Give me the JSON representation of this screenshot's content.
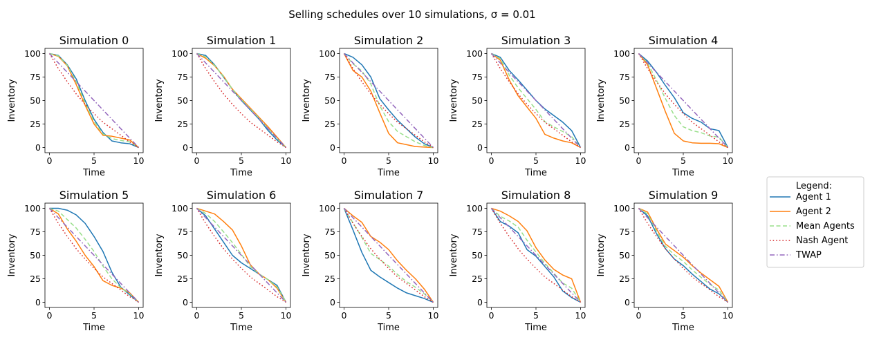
{
  "figure": {
    "suptitle": "Selling schedules over 10 simulations, σ = 0.01"
  },
  "legend": {
    "title": "Legend:",
    "placement": "right"
  },
  "chart_data": {
    "type": "line",
    "layout": "2x5 small multiples",
    "xlabel": "Time",
    "ylabel": "Inventory",
    "xlim": [
      0,
      10
    ],
    "ylim": [
      0,
      100
    ],
    "xticks": [
      0,
      5,
      10
    ],
    "yticks": [
      0,
      25,
      50,
      75,
      100
    ],
    "grid": false,
    "x": [
      0,
      1,
      2,
      3,
      4,
      5,
      6,
      7,
      8,
      9,
      10
    ],
    "styles": [
      {
        "name": "Agent 1",
        "color": "#1f77b4",
        "dash": "solid"
      },
      {
        "name": "Agent 2",
        "color": "#ff7f0e",
        "dash": "solid"
      },
      {
        "name": "Mean Agents",
        "color": "#98df8a",
        "dash": "dashed"
      },
      {
        "name": "Nash Agent",
        "color": "#d62728",
        "dash": "dotted"
      },
      {
        "name": "TWAP",
        "color": "#9467bd",
        "dash": "dashdot"
      }
    ],
    "panels": [
      {
        "title": "Simulation 0",
        "series": [
          {
            "name": "Agent 1",
            "values": [
              100,
              98,
              88,
              73,
              50,
              30,
              16,
              7,
              5,
              4,
              0
            ]
          },
          {
            "name": "Agent 2",
            "values": [
              100,
              97,
              87,
              67,
              45,
              25,
              13,
              12,
              10,
              8,
              0
            ]
          },
          {
            "name": "Mean Agents",
            "values": [
              100,
              97.5,
              87.5,
              70,
              47.5,
              27.5,
              14.5,
              9.5,
              7.5,
              6,
              0
            ]
          },
          {
            "name": "Nash Agent",
            "values": [
              100,
              84,
              70,
              57,
              46,
              36,
              27,
              20,
              13,
              6,
              0
            ]
          },
          {
            "name": "TWAP",
            "values": [
              100,
              90,
              80,
              70,
              60,
              50,
              40,
              30,
              20,
              10,
              0
            ]
          }
        ]
      },
      {
        "title": "Simulation 1",
        "series": [
          {
            "name": "Agent 1",
            "values": [
              100,
              98,
              88,
              75,
              62,
              50,
              40,
              30,
              18,
              8,
              0
            ]
          },
          {
            "name": "Agent 2",
            "values": [
              100,
              95,
              87,
              76,
              62,
              52,
              42,
              32,
              22,
              11,
              0
            ]
          },
          {
            "name": "Mean Agents",
            "values": [
              100,
              96.5,
              87.5,
              75.5,
              62,
              51,
              41,
              31,
              20,
              9.5,
              0
            ]
          },
          {
            "name": "Nash Agent",
            "values": [
              100,
              84,
              70,
              57,
              46,
              36,
              27,
              20,
              13,
              6,
              0
            ]
          },
          {
            "name": "TWAP",
            "values": [
              100,
              90,
              80,
              70,
              60,
              50,
              40,
              30,
              20,
              10,
              0
            ]
          }
        ]
      },
      {
        "title": "Simulation 2",
        "series": [
          {
            "name": "Agent 1",
            "values": [
              100,
              96,
              88,
              75,
              52,
              40,
              29,
              20,
              11,
              4,
              0
            ]
          },
          {
            "name": "Agent 2",
            "values": [
              100,
              82,
              75,
              60,
              37,
              15,
              5,
              3,
              1,
              0.5,
              0
            ]
          },
          {
            "name": "Mean Agents",
            "values": [
              100,
              89,
              81.5,
              67.5,
              44.5,
              27.5,
              17,
              11.5,
              6,
              2.2,
              0
            ]
          },
          {
            "name": "Nash Agent",
            "values": [
              100,
              84,
              70,
              57,
              46,
              36,
              27,
              20,
              13,
              6,
              0
            ]
          },
          {
            "name": "TWAP",
            "values": [
              100,
              90,
              80,
              70,
              60,
              50,
              40,
              30,
              20,
              10,
              0
            ]
          }
        ]
      },
      {
        "title": "Simulation 3",
        "series": [
          {
            "name": "Agent 1",
            "values": [
              100,
              96,
              82,
              72,
              61,
              50,
              41,
              34,
              27,
              18,
              0
            ]
          },
          {
            "name": "Agent 2",
            "values": [
              100,
              93,
              72,
              55,
              43,
              31,
              14,
              10,
              7,
              5,
              0
            ]
          },
          {
            "name": "Mean Agents",
            "values": [
              100,
              94.5,
              77,
              63.5,
              52,
              40.5,
              27.5,
              22,
              17,
              11.5,
              0
            ]
          },
          {
            "name": "Nash Agent",
            "values": [
              100,
              84,
              70,
              57,
              46,
              36,
              27,
              20,
              13,
              6,
              0
            ]
          },
          {
            "name": "TWAP",
            "values": [
              100,
              90,
              80,
              70,
              60,
              50,
              40,
              30,
              20,
              10,
              0
            ]
          }
        ]
      },
      {
        "title": "Simulation 4",
        "series": [
          {
            "name": "Agent 1",
            "values": [
              100,
              92,
              80,
              66,
              53,
              37,
              31,
              27,
              20,
              18,
              0
            ]
          },
          {
            "name": "Agent 2",
            "values": [
              100,
              88,
              63,
              38,
              15,
              7,
              5,
              4.5,
              4.5,
              4,
              0
            ]
          },
          {
            "name": "Mean Agents",
            "values": [
              100,
              90,
              71.5,
              52,
              34,
              22,
              18,
              15.75,
              12.25,
              11,
              0
            ]
          },
          {
            "name": "Nash Agent",
            "values": [
              100,
              84,
              70,
              57,
              46,
              36,
              27,
              20,
              13,
              6,
              0
            ]
          },
          {
            "name": "TWAP",
            "values": [
              100,
              90,
              80,
              70,
              60,
              50,
              40,
              30,
              20,
              10,
              0
            ]
          }
        ]
      },
      {
        "title": "Simulation 5",
        "series": [
          {
            "name": "Agent 1",
            "values": [
              100,
              100,
              98,
              93,
              84,
              70,
              54,
              32,
              16,
              8,
              0
            ]
          },
          {
            "name": "Agent 2",
            "values": [
              100,
              94,
              78,
              65,
              50,
              38,
              23,
              18,
              15,
              10,
              0
            ]
          },
          {
            "name": "Mean Agents",
            "values": [
              100,
              97,
              88,
              79,
              67,
              54,
              38.5,
              25,
              15.5,
              9,
              0
            ]
          },
          {
            "name": "Nash Agent",
            "values": [
              100,
              84,
              70,
              57,
              46,
              36,
              27,
              20,
              13,
              6,
              0
            ]
          },
          {
            "name": "TWAP",
            "values": [
              100,
              90,
              80,
              70,
              60,
              50,
              40,
              30,
              20,
              10,
              0
            ]
          }
        ]
      },
      {
        "title": "Simulation 6",
        "series": [
          {
            "name": "Agent 1",
            "values": [
              100,
              92,
              78,
              64,
              50,
              42,
              36,
              30,
              24,
              18,
              0
            ]
          },
          {
            "name": "Agent 2",
            "values": [
              100,
              97,
              94,
              86,
              77,
              60,
              40,
              30,
              24,
              15,
              0
            ]
          },
          {
            "name": "Mean Agents",
            "values": [
              100,
              94.5,
              86,
              75,
              63.5,
              51,
              38,
              30,
              24,
              16.5,
              0
            ]
          },
          {
            "name": "Nash Agent",
            "values": [
              100,
              84,
              70,
              57,
              46,
              36,
              27,
              20,
              13,
              6,
              0
            ]
          },
          {
            "name": "TWAP",
            "values": [
              100,
              90,
              80,
              70,
              60,
              50,
              40,
              30,
              20,
              10,
              0
            ]
          }
        ]
      },
      {
        "title": "Simulation 7",
        "series": [
          {
            "name": "Agent 1",
            "values": [
              100,
              77,
              53,
              34,
              27,
              21,
              15,
              10,
              7,
              4,
              0
            ]
          },
          {
            "name": "Agent 2",
            "values": [
              100,
              92,
              85,
              70,
              64,
              56,
              44,
              34,
              25,
              14,
              0
            ]
          },
          {
            "name": "Mean Agents",
            "values": [
              100,
              84.5,
              69,
              52,
              45.5,
              38.5,
              29.5,
              22,
              16,
              9,
              0
            ]
          },
          {
            "name": "Nash Agent",
            "values": [
              100,
              84,
              70,
              57,
              46,
              36,
              27,
              20,
              13,
              6,
              0
            ]
          },
          {
            "name": "TWAP",
            "values": [
              100,
              90,
              80,
              70,
              60,
              50,
              40,
              30,
              20,
              10,
              0
            ]
          }
        ]
      },
      {
        "title": "Simulation 8",
        "series": [
          {
            "name": "Agent 1",
            "values": [
              100,
              86,
              81,
              74,
              56,
              49,
              38,
              27,
              12,
              5,
              0
            ]
          },
          {
            "name": "Agent 2",
            "values": [
              100,
              97,
              92,
              86,
              76,
              58,
              45,
              35,
              29,
              25,
              0
            ]
          },
          {
            "name": "Mean Agents",
            "values": [
              100,
              91.5,
              86.5,
              80,
              66,
              53.5,
              41.5,
              31,
              20.5,
              15,
              0
            ]
          },
          {
            "name": "Nash Agent",
            "values": [
              100,
              84,
              70,
              57,
              46,
              36,
              27,
              20,
              13,
              6,
              0
            ]
          },
          {
            "name": "TWAP",
            "values": [
              100,
              90,
              80,
              70,
              60,
              50,
              40,
              30,
              20,
              10,
              0
            ]
          }
        ]
      },
      {
        "title": "Simulation 9",
        "series": [
          {
            "name": "Agent 1",
            "values": [
              100,
              92,
              73,
              57,
              46,
              39,
              30,
              22,
              14,
              9,
              0
            ]
          },
          {
            "name": "Agent 2",
            "values": [
              100,
              96,
              78,
              62,
              55,
              48,
              39,
              31,
              24,
              17,
              0
            ]
          },
          {
            "name": "Mean Agents",
            "values": [
              100,
              94,
              75.5,
              59.5,
              50.5,
              43.5,
              34.5,
              26.5,
              19,
              13,
              0
            ]
          },
          {
            "name": "Nash Agent",
            "values": [
              100,
              84,
              70,
              57,
              46,
              36,
              27,
              20,
              13,
              6,
              0
            ]
          },
          {
            "name": "TWAP",
            "values": [
              100,
              90,
              80,
              70,
              60,
              50,
              40,
              30,
              20,
              10,
              0
            ]
          }
        ]
      }
    ]
  }
}
